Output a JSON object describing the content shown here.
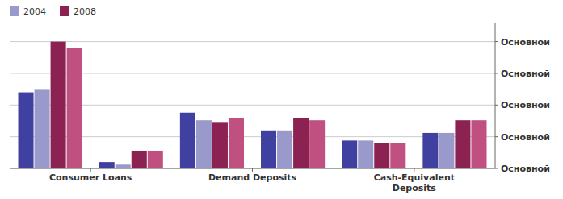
{
  "chart_data": {
    "type": "bar",
    "categories": [
      "Consumer Loans",
      null,
      "Demand Deposits",
      null,
      "Cash-Equivalent\nDeposits",
      null
    ],
    "series": [
      {
        "color": "#4040a0",
        "values": [
          60,
          5,
          44,
          30,
          22,
          28
        ]
      },
      {
        "name": "2004",
        "color": "#9999cc",
        "values": [
          62,
          3,
          38,
          30,
          22,
          28
        ]
      },
      {
        "name": "2008",
        "color": "#8b2252",
        "values": [
          100,
          14,
          36,
          40,
          20,
          38
        ]
      },
      {
        "color": "#c05080",
        "values": [
          95,
          14,
          40,
          38,
          20,
          38
        ]
      }
    ],
    "ylim": [
      0,
      115
    ],
    "yticks": [
      {
        "value": 0,
        "label": "Основной"
      },
      {
        "value": 25,
        "label": "Основной"
      },
      {
        "value": 50,
        "label": "Основной"
      },
      {
        "value": 75,
        "label": "Основной"
      },
      {
        "value": 100,
        "label": "Основной"
      }
    ],
    "grid": true,
    "legend": "upper left"
  }
}
